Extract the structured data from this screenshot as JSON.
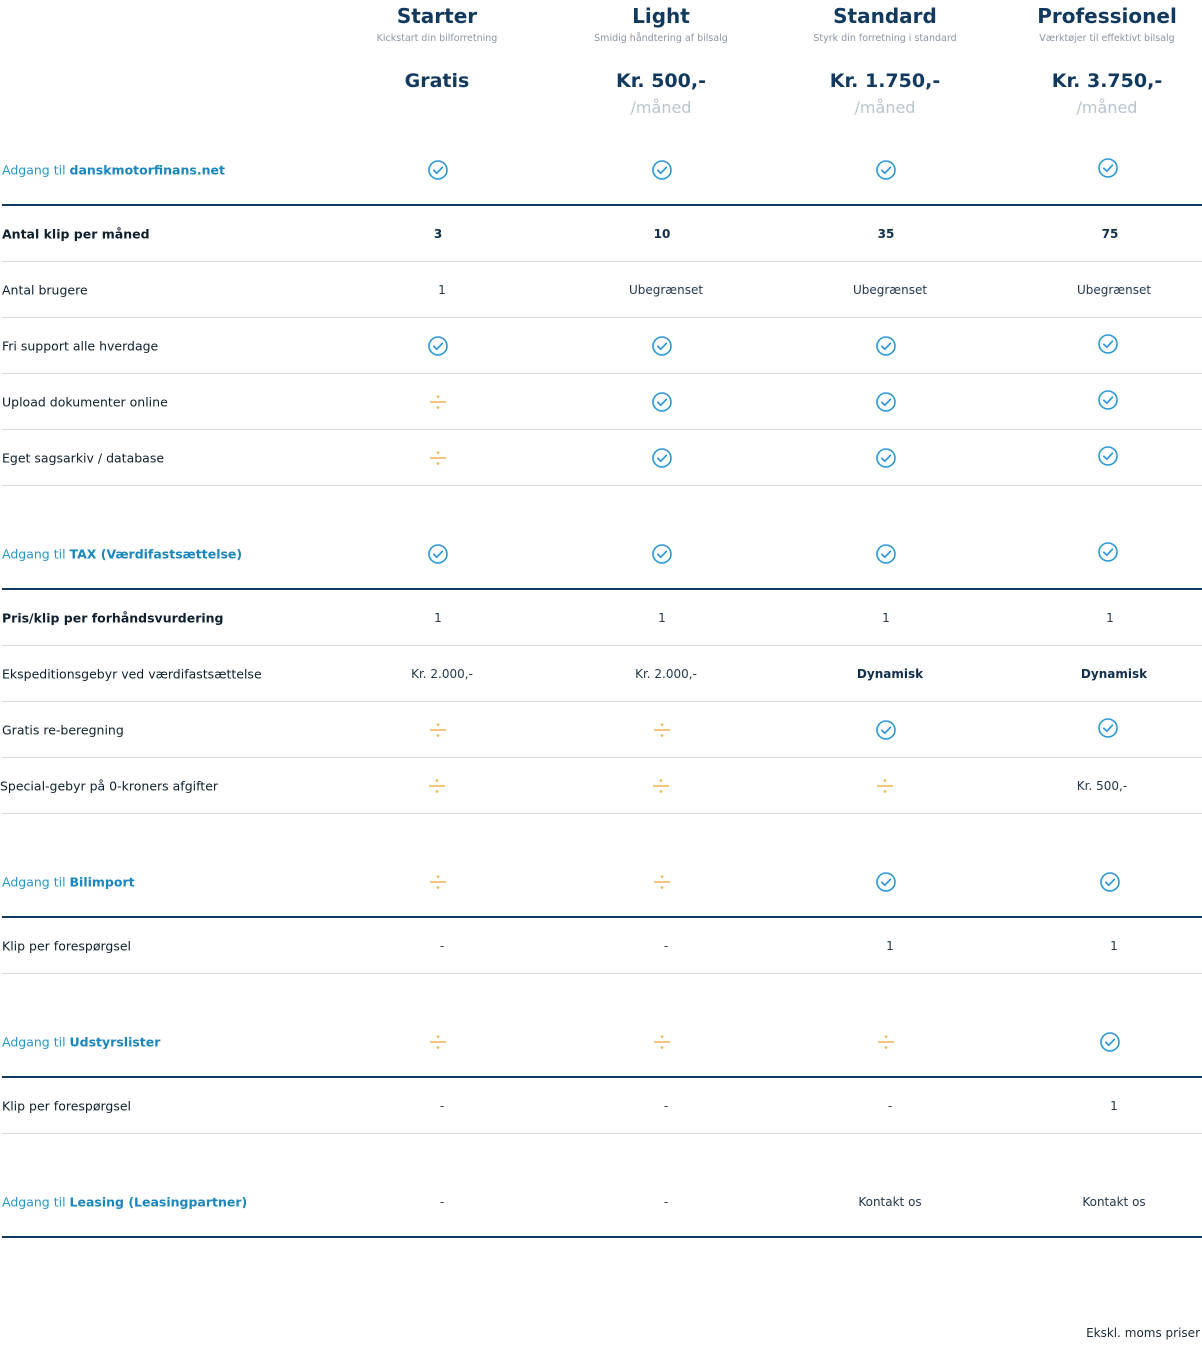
{
  "plans": [
    {
      "name": "Starter",
      "tagline": "Kickstart din bilforretning",
      "price": "Gratis",
      "per": ""
    },
    {
      "name": "Light",
      "tagline": "Smidig håndtering af bilsalg",
      "price": "Kr. 500,-",
      "per": "/måned"
    },
    {
      "name": "Standard",
      "tagline": "Styrk din forretning i standard",
      "price": "Kr. 1.750,-",
      "per": "/måned"
    },
    {
      "name": "Professionel",
      "tagline": "Værktøjer til effektivt bilsalg",
      "price": "Kr. 3.750,-",
      "per": "/måned"
    }
  ],
  "sections": {
    "s1": {
      "prefix": "Adgang til ",
      "name": "danskmotorfinans.net"
    },
    "s2": {
      "prefix": "Adgang til ",
      "name": "TAX (Værdifastsættelse)"
    },
    "s3": {
      "prefix": "Adgang til ",
      "name": "Bilimport"
    },
    "s4": {
      "prefix": "Adgang til ",
      "name": "Udstyrslister"
    },
    "s5": {
      "prefix": "Adgang til ",
      "name": "Leasing (Leasingpartner)"
    }
  },
  "rows": {
    "klip": {
      "label": "Antal klip per måned",
      "values": [
        "3",
        "10",
        "35",
        "75"
      ]
    },
    "brugere": {
      "label": "Antal brugere",
      "values": [
        "1",
        "Ubegrænset",
        "Ubegrænset",
        "Ubegrænset"
      ]
    },
    "support": {
      "label": "Fri support alle hverdage"
    },
    "upload": {
      "label": "Upload dokumenter online"
    },
    "arkiv": {
      "label": "Eget sagsarkiv / database"
    },
    "prisklip": {
      "label": "Pris/klip per forhåndsvurdering",
      "values": [
        "1",
        "1",
        "1",
        "1"
      ]
    },
    "ekspedition": {
      "label": "Ekspeditionsgebyr ved værdifastsættelse",
      "values": [
        "Kr. 2.000,-",
        "Kr. 2.000,-",
        "Dynamisk",
        "Dynamisk"
      ]
    },
    "reberegning": {
      "label": "Gratis re-beregning"
    },
    "specialgebyr": {
      "label": "Special-gebyr på 0-kroners afgifter",
      "values": [
        "",
        "",
        "",
        "Kr. 500,-"
      ]
    },
    "klip_import": {
      "label": "Klip per forespørgsel",
      "values": [
        "-",
        "-",
        "1",
        "1"
      ]
    },
    "klip_udstyr": {
      "label": "Klip per forespørgsel",
      "values": [
        "-",
        "-",
        "-",
        "1"
      ]
    },
    "leasing": {
      "values": [
        "-",
        "-",
        "Kontakt os",
        "Kontakt os"
      ]
    }
  },
  "icons": {
    "check": "check-circle-icon",
    "minus": "divide-icon",
    "check_color": "#2b97d6",
    "minus_color": "#f0b14a"
  },
  "footer": "Ekskl. moms priser"
}
